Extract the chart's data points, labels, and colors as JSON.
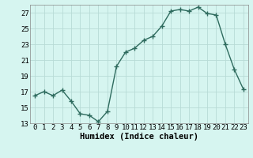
{
  "x": [
    0,
    1,
    2,
    3,
    4,
    5,
    6,
    7,
    8,
    9,
    10,
    11,
    12,
    13,
    14,
    15,
    16,
    17,
    18,
    19,
    20,
    21,
    22,
    23
  ],
  "y": [
    16.5,
    17.0,
    16.5,
    17.2,
    15.8,
    14.2,
    14.0,
    13.2,
    14.5,
    20.2,
    22.0,
    22.5,
    23.5,
    24.0,
    25.3,
    27.2,
    27.4,
    27.2,
    27.7,
    26.9,
    26.7,
    23.0,
    19.8,
    17.3
  ],
  "line_color": "#2e6b5e",
  "marker": "+",
  "marker_size": 4,
  "bg_color": "#d6f5f0",
  "grid_color": "#b8dbd6",
  "xlabel": "Humidex (Indice chaleur)",
  "xlim": [
    -0.5,
    23.5
  ],
  "ylim": [
    13,
    28
  ],
  "yticks": [
    13,
    15,
    17,
    19,
    21,
    23,
    25,
    27
  ],
  "xticks": [
    0,
    1,
    2,
    3,
    4,
    5,
    6,
    7,
    8,
    9,
    10,
    11,
    12,
    13,
    14,
    15,
    16,
    17,
    18,
    19,
    20,
    21,
    22,
    23
  ],
  "xlabel_fontsize": 7.5,
  "tick_fontsize": 6.5,
  "line_width": 1.0,
  "marker_color": "#2e6b5e"
}
